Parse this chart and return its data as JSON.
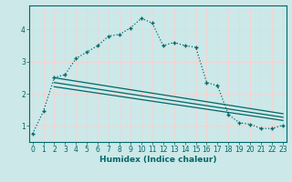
{
  "title": "",
  "xlabel": "Humidex (Indice chaleur)",
  "ylabel": "",
  "bg_color": "#cce8e8",
  "line_color": "#006868",
  "grid_color": "#ffffff",
  "grid_minor_color": "#e8f8f8",
  "x_ticks": [
    0,
    1,
    2,
    3,
    4,
    5,
    6,
    7,
    8,
    9,
    10,
    11,
    12,
    13,
    14,
    15,
    16,
    17,
    18,
    19,
    20,
    21,
    22,
    23
  ],
  "y_ticks": [
    1,
    2,
    3,
    4
  ],
  "ylim": [
    0.5,
    4.75
  ],
  "xlim": [
    -0.3,
    23.3
  ],
  "curve1_x": [
    0,
    1,
    2,
    3,
    4,
    5,
    6,
    7,
    8,
    9,
    10,
    11,
    12,
    13,
    14,
    15,
    16,
    17,
    18,
    19,
    20,
    21,
    22,
    23
  ],
  "curve1_y": [
    0.75,
    1.45,
    2.5,
    2.6,
    3.1,
    3.3,
    3.5,
    3.8,
    3.85,
    4.05,
    4.35,
    4.2,
    3.5,
    3.6,
    3.5,
    3.45,
    2.35,
    2.25,
    1.35,
    1.1,
    1.05,
    0.92,
    0.92,
    1.02
  ],
  "line2_x": [
    2,
    23
  ],
  "line2_y": [
    2.5,
    1.38
  ],
  "line3_x": [
    2,
    23
  ],
  "line3_y": [
    2.35,
    1.27
  ],
  "line4_x": [
    2,
    23
  ],
  "line4_y": [
    2.22,
    1.17
  ]
}
